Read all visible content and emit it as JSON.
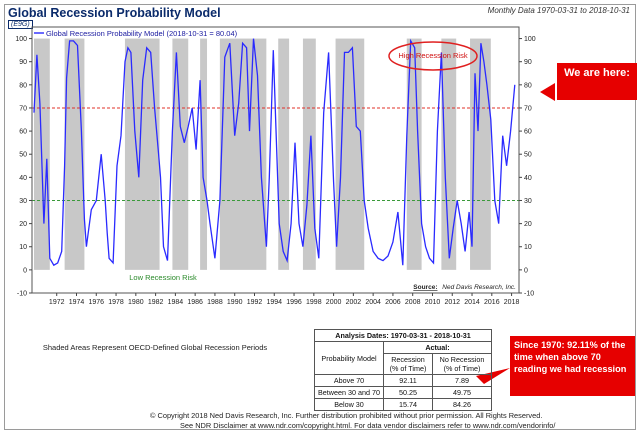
{
  "header": {
    "title": "Global Recession Probability Model",
    "code": "(E9G)",
    "monthly": "Monthly Data 1970-03-31 to 2018-10-31"
  },
  "chart_data": {
    "type": "line",
    "legend": "Global Recession Probability Model (2018-10-31 = 80.04)",
    "source": "Ned Davis Research, Inc.",
    "source_label": "Source:",
    "annotations": {
      "high": "High Recession Risk",
      "low": "Low Recession Risk"
    },
    "ylim": [
      -10,
      105
    ],
    "yticks": [
      -10,
      0,
      10,
      20,
      30,
      40,
      50,
      60,
      70,
      80,
      90,
      100
    ],
    "xlim": [
      1970.0,
      2019.25
    ],
    "xticks": [
      "1972",
      "1974",
      "1976",
      "1978",
      "1980",
      "1982",
      "1984",
      "1986",
      "1988",
      "1990",
      "1992",
      "1994",
      "1996",
      "1998",
      "2000",
      "2002",
      "2004",
      "2006",
      "2008",
      "2010",
      "2012",
      "2014",
      "2016",
      "2018"
    ],
    "reference_lines": [
      {
        "y": 70,
        "color": "#e0302a"
      },
      {
        "y": 30,
        "color": "#3a9a3a"
      }
    ],
    "shaded_periods": [
      [
        1970.2,
        1971.8
      ],
      [
        1973.3,
        1975.3
      ],
      [
        1979.4,
        1982.9
      ],
      [
        1984.2,
        1985.8
      ],
      [
        1987.0,
        1987.7
      ],
      [
        1989.0,
        1993.7
      ],
      [
        1994.9,
        1996.0
      ],
      [
        1997.4,
        1998.7
      ],
      [
        2000.7,
        2003.6
      ],
      [
        2007.9,
        2009.4
      ],
      [
        2011.4,
        2012.9
      ],
      [
        2014.3,
        2016.4
      ]
    ],
    "series": [
      {
        "color": "#2a2aff",
        "x": [
          1970.2,
          1970.5,
          1970.8,
          1971.2,
          1971.5,
          1971.8,
          1972.2,
          1972.6,
          1973.0,
          1973.3,
          1973.5,
          1973.8,
          1974.2,
          1974.6,
          1975.0,
          1975.3,
          1975.5,
          1976.0,
          1976.5,
          1977.0,
          1977.4,
          1977.6,
          1977.8,
          1978.2,
          1978.6,
          1979.0,
          1979.4,
          1979.7,
          1980.0,
          1980.4,
          1980.8,
          1981.2,
          1981.6,
          1982.0,
          1982.4,
          1982.8,
          1983.0,
          1983.3,
          1983.7,
          1984.2,
          1984.6,
          1985.0,
          1985.4,
          1985.8,
          1986.2,
          1986.6,
          1987.0,
          1987.3,
          1987.7,
          1988.0,
          1988.5,
          1989.0,
          1989.5,
          1990.0,
          1990.5,
          1990.9,
          1991.3,
          1991.7,
          1992.0,
          1992.4,
          1992.8,
          1993.2,
          1993.7,
          1994.0,
          1994.4,
          1994.7,
          1995.0,
          1995.4,
          1995.8,
          1996.2,
          1996.6,
          1997.0,
          1997.4,
          1997.8,
          1998.2,
          1998.6,
          1999.0,
          1999.5,
          2000.0,
          2000.5,
          2000.8,
          2001.2,
          2001.6,
          2002.0,
          2002.4,
          2002.8,
          2003.2,
          2003.6,
          2004.0,
          2004.5,
          2005.0,
          2005.5,
          2006.0,
          2006.5,
          2007.0,
          2007.5,
          2007.9,
          2008.3,
          2008.7,
          2009.0,
          2009.4,
          2009.8,
          2010.2,
          2010.6,
          2011.0,
          2011.4,
          2011.8,
          2012.2,
          2012.6,
          2013.0,
          2013.4,
          2013.8,
          2014.2,
          2014.5,
          2014.8,
          2015.1,
          2015.4,
          2015.7,
          2016.0,
          2016.4,
          2016.8,
          2017.2,
          2017.6,
          2018.0,
          2018.4,
          2018.83
        ],
        "values": [
          68,
          93,
          72,
          20,
          48,
          5,
          2,
          3,
          8,
          45,
          83,
          99,
          99,
          97,
          60,
          22,
          10,
          26,
          30,
          50,
          30,
          16,
          5,
          3,
          45,
          58,
          90,
          96,
          94,
          60,
          40,
          82,
          96,
          94,
          70,
          50,
          40,
          10,
          4,
          60,
          94,
          62,
          55,
          62,
          70,
          52,
          82,
          40,
          30,
          20,
          5,
          30,
          92,
          98,
          58,
          72,
          98,
          96,
          60,
          100,
          84,
          40,
          10,
          40,
          95,
          58,
          20,
          8,
          4,
          20,
          55,
          20,
          10,
          28,
          58,
          18,
          5,
          68,
          94,
          38,
          10,
          40,
          94,
          94,
          96,
          62,
          60,
          30,
          18,
          8,
          5,
          4,
          6,
          12,
          25,
          2,
          58,
          99,
          96,
          60,
          20,
          10,
          5,
          3,
          60,
          94,
          40,
          5,
          18,
          30,
          20,
          8,
          25,
          10,
          85,
          60,
          98,
          90,
          80,
          65,
          30,
          20,
          58,
          45,
          60,
          80
        ]
      }
    ]
  },
  "table": {
    "header": "Analysis Dates: 1970-03-31 - 2018-10-31",
    "actual": "Actual:",
    "col0": "Probability Model",
    "col1": "Recession (% of Time)",
    "col2": "No Recession (% of Time)",
    "rows": [
      {
        "label": "Above 70",
        "rec": "92.11",
        "norec": "7.89"
      },
      {
        "label": "Between 30 and 70",
        "rec": "50.25",
        "norec": "49.75"
      },
      {
        "label": "Below 30",
        "rec": "15.74",
        "norec": "84.26"
      }
    ]
  },
  "notes": {
    "shaded": "Shaded Areas Represent OECD-Defined Global Recession Periods"
  },
  "callouts": {
    "here": "We are here:",
    "since": "Since 1970: 92.11% of the time when above 70 reading we had recession"
  },
  "footer": {
    "copyright": "© Copyright 2018 Ned Davis Research, Inc. Further distribution prohibited without prior permission. All Rights Reserved.",
    "disclaimer": "See NDR Disclaimer at www.ndr.com/copyright.html. For data vendor disclaimers refer to www.ndr.com/vendorinfo/"
  },
  "colors": {
    "line": "#2a2aff",
    "shade": "#c8c8c8",
    "callout": "#e60000",
    "ellipse": "#e02020"
  }
}
